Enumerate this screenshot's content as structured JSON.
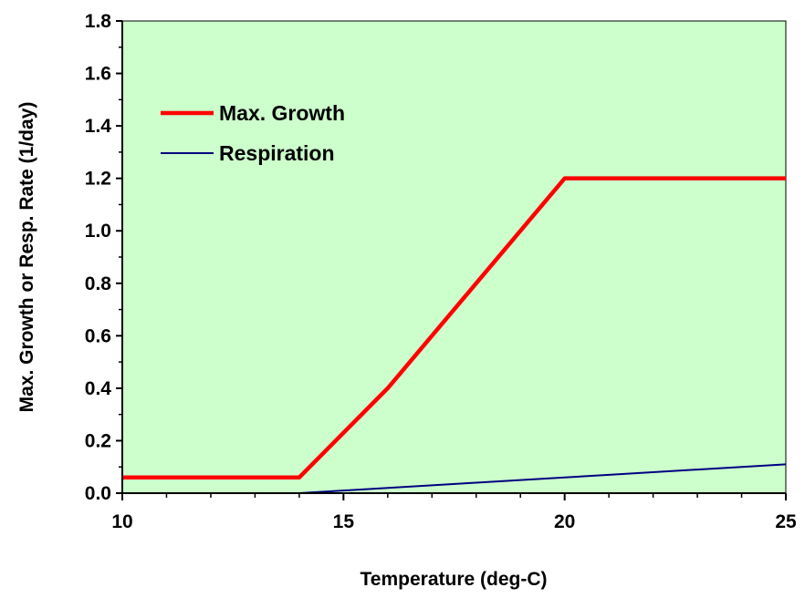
{
  "chart_data": {
    "type": "line",
    "title": "",
    "xlabel": "Temperature (deg-C)",
    "ylabel": "Max. Growth or Resp. Rate (1/day)",
    "xlim": [
      10,
      25
    ],
    "ylim": [
      0,
      1.8
    ],
    "x_ticks": [
      "10",
      "15",
      "20",
      "25"
    ],
    "x_tick_values": [
      10,
      15,
      20,
      25
    ],
    "y_ticks": [
      "0.0",
      "0.2",
      "0.4",
      "0.6",
      "0.8",
      "1.0",
      "1.2",
      "1.4",
      "1.6",
      "1.8"
    ],
    "y_tick_values": [
      0,
      0.2,
      0.4,
      0.6,
      0.8,
      1.0,
      1.2,
      1.4,
      1.6,
      1.8
    ],
    "grid": false,
    "plot_background": "#ccffcc",
    "legend_position": "top-left",
    "series": [
      {
        "name": "Max. Growth",
        "color": "#ff0000",
        "points": [
          [
            10,
            0.06
          ],
          [
            14,
            0.06
          ],
          [
            16,
            0.4
          ],
          [
            20,
            1.2
          ],
          [
            25,
            1.2
          ]
        ]
      },
      {
        "name": "Respiration",
        "color": "#000080",
        "points": [
          [
            10,
            0.0
          ],
          [
            14,
            0.0
          ],
          [
            16,
            0.02
          ],
          [
            18,
            0.04
          ],
          [
            20,
            0.06
          ],
          [
            21,
            0.07
          ],
          [
            23,
            0.09
          ],
          [
            24,
            0.1
          ],
          [
            25,
            0.11
          ]
        ]
      }
    ]
  }
}
